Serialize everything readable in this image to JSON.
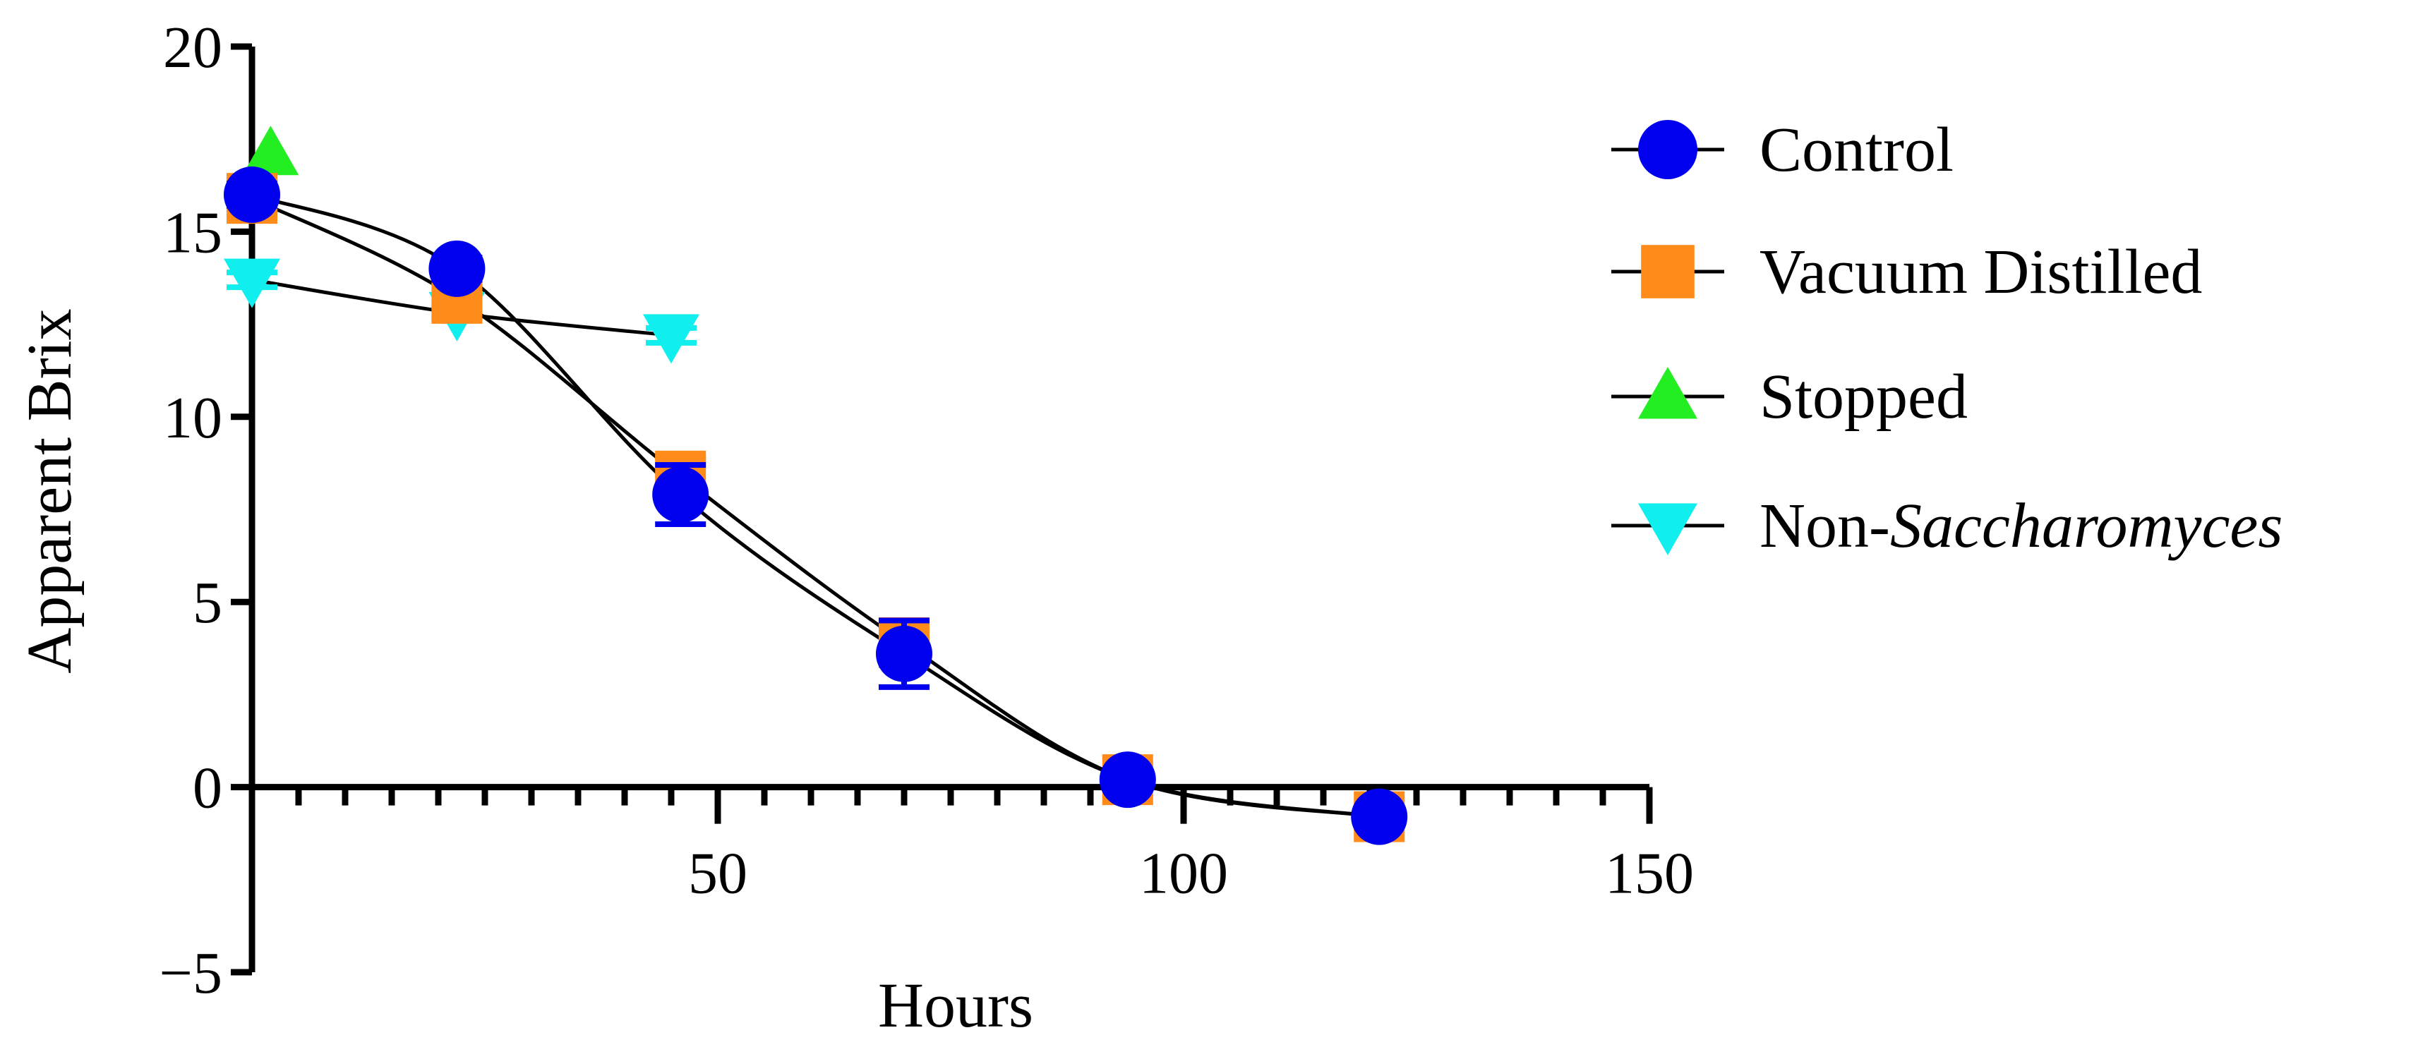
{
  "chart_data": {
    "type": "scatter",
    "title": "",
    "xlabel": "Hours",
    "ylabel": "Apparent Brix",
    "xlim": [
      0,
      150
    ],
    "ylim": [
      -5,
      20
    ],
    "x_major_ticks": [
      50,
      100,
      150
    ],
    "x_minor_step": 5,
    "y_ticks": [
      -5,
      0,
      5,
      10,
      15,
      20
    ],
    "x_tick_labels": [
      "50",
      "100",
      "150"
    ],
    "y_tick_labels": [
      "−5",
      "0",
      "5",
      "10",
      "15",
      "20"
    ],
    "legend_position": "right",
    "series": [
      {
        "name": "Control",
        "legend_label": "Control",
        "marker": "circle",
        "color": "#0000ee",
        "x": [
          0,
          22,
          46,
          70,
          94,
          121
        ],
        "y": [
          16.0,
          14.0,
          7.9,
          3.6,
          0.2,
          -0.8
        ],
        "err": [
          0.3,
          0.3,
          0.8,
          0.9,
          0.2,
          0.2
        ],
        "fit": true
      },
      {
        "name": "Vacuum Distilled",
        "legend_label": "Vacuum Distilled",
        "marker": "square",
        "color": "#ff8c1a",
        "x": [
          0,
          22,
          46,
          70,
          94,
          121
        ],
        "y": [
          15.9,
          13.2,
          8.4,
          3.9,
          0.2,
          -0.8
        ],
        "err": [
          0.3,
          0.3,
          0.5,
          0.6,
          0.2,
          0.2
        ],
        "fit": true
      },
      {
        "name": "Stopped",
        "legend_label": "Stopped",
        "marker": "triangle-up",
        "color": "#22ee22",
        "x": [
          2
        ],
        "y": [
          17.1
        ],
        "err": [
          0
        ],
        "fit": false
      },
      {
        "name": "Non-Saccharomyces",
        "legend_label_prefix": "Non-",
        "legend_label_italic": "Saccharomyces",
        "marker": "triangle-down",
        "color": "#11eeee",
        "x": [
          0,
          22,
          45
        ],
        "y": [
          13.7,
          12.8,
          12.2
        ],
        "err": [
          0.2,
          0.2,
          0.2
        ],
        "fit": true
      }
    ]
  }
}
